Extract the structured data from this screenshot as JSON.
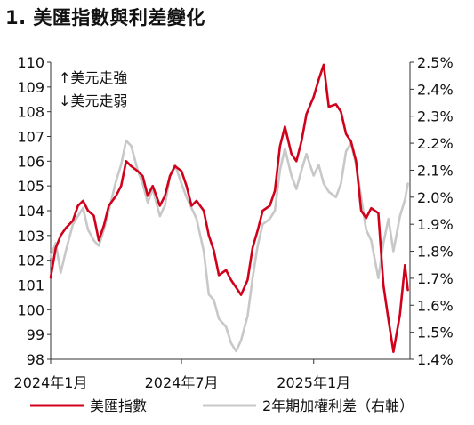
{
  "chart_data": {
    "type": "line",
    "title": "1. 美匯指數與利差變化",
    "annotations": [
      "↑美元走強",
      "↓美元走弱"
    ],
    "left_axis": {
      "ylim": [
        98,
        110
      ],
      "ticks": [
        98,
        99,
        100,
        101,
        102,
        103,
        104,
        105,
        106,
        107,
        108,
        109,
        110
      ]
    },
    "right_axis": {
      "ylim": [
        1.4,
        2.5
      ],
      "ticks": [
        "1.4%",
        "1.5%",
        "1.6%",
        "1.7%",
        "1.8%",
        "1.9%",
        "2.0%",
        "2.1%",
        "2.2%",
        "2.3%",
        "2.4%",
        "2.5%"
      ]
    },
    "x_ticks": [
      {
        "date": "2024-01-01",
        "label": "2024年1月"
      },
      {
        "date": "2024-07-01",
        "label": "2024年7月"
      },
      {
        "date": "2025-01-01",
        "label": "2025年1月"
      }
    ],
    "xlim": [
      "2024-01-01",
      "2025-05-15"
    ],
    "series": [
      {
        "name": "美匯指數",
        "axis": "left",
        "color": "#d0021b",
        "points": [
          [
            "2024-01-01",
            101.3
          ],
          [
            "2024-01-08",
            102.5
          ],
          [
            "2024-01-15",
            103.0
          ],
          [
            "2024-01-22",
            103.3
          ],
          [
            "2024-02-01",
            103.6
          ],
          [
            "2024-02-08",
            104.2
          ],
          [
            "2024-02-15",
            104.4
          ],
          [
            "2024-02-22",
            104.0
          ],
          [
            "2024-03-01",
            103.8
          ],
          [
            "2024-03-08",
            102.8
          ],
          [
            "2024-03-15",
            103.4
          ],
          [
            "2024-03-22",
            104.2
          ],
          [
            "2024-04-01",
            104.6
          ],
          [
            "2024-04-08",
            105.0
          ],
          [
            "2024-04-15",
            106.0
          ],
          [
            "2024-04-22",
            105.8
          ],
          [
            "2024-05-01",
            105.6
          ],
          [
            "2024-05-08",
            105.4
          ],
          [
            "2024-05-15",
            104.6
          ],
          [
            "2024-05-22",
            105.0
          ],
          [
            "2024-06-01",
            104.2
          ],
          [
            "2024-06-08",
            104.6
          ],
          [
            "2024-06-15",
            105.4
          ],
          [
            "2024-06-22",
            105.8
          ],
          [
            "2024-07-01",
            105.6
          ],
          [
            "2024-07-08",
            105.0
          ],
          [
            "2024-07-15",
            104.2
          ],
          [
            "2024-07-22",
            104.4
          ],
          [
            "2024-08-01",
            104.0
          ],
          [
            "2024-08-08",
            103.0
          ],
          [
            "2024-08-15",
            102.4
          ],
          [
            "2024-08-22",
            101.4
          ],
          [
            "2024-09-01",
            101.6
          ],
          [
            "2024-09-08",
            101.2
          ],
          [
            "2024-09-15",
            100.9
          ],
          [
            "2024-09-22",
            100.6
          ],
          [
            "2024-10-01",
            101.2
          ],
          [
            "2024-10-08",
            102.5
          ],
          [
            "2024-10-15",
            103.2
          ],
          [
            "2024-10-22",
            104.0
          ],
          [
            "2024-11-01",
            104.2
          ],
          [
            "2024-11-08",
            104.8
          ],
          [
            "2024-11-15",
            106.6
          ],
          [
            "2024-11-22",
            107.4
          ],
          [
            "2024-12-01",
            106.3
          ],
          [
            "2024-12-08",
            106.0
          ],
          [
            "2024-12-15",
            106.8
          ],
          [
            "2024-12-22",
            107.9
          ],
          [
            "2025-01-01",
            108.6
          ],
          [
            "2025-01-08",
            109.3
          ],
          [
            "2025-01-15",
            109.9
          ],
          [
            "2025-01-22",
            108.2
          ],
          [
            "2025-02-01",
            108.3
          ],
          [
            "2025-02-08",
            108.0
          ],
          [
            "2025-02-15",
            107.1
          ],
          [
            "2025-02-22",
            106.8
          ],
          [
            "2025-03-01",
            106.0
          ],
          [
            "2025-03-08",
            104.0
          ],
          [
            "2025-03-15",
            103.7
          ],
          [
            "2025-03-22",
            104.1
          ],
          [
            "2025-04-01",
            103.9
          ],
          [
            "2025-04-08",
            101.0
          ],
          [
            "2025-04-15",
            99.6
          ],
          [
            "2025-04-22",
            98.3
          ],
          [
            "2025-05-01",
            99.8
          ],
          [
            "2025-05-08",
            101.8
          ],
          [
            "2025-05-12",
            100.8
          ]
        ]
      },
      {
        "name": "2年期加權利差（右軸）",
        "axis": "right",
        "color": "#c8c8c8",
        "points": [
          [
            "2024-01-01",
            1.78
          ],
          [
            "2024-01-08",
            1.83
          ],
          [
            "2024-01-15",
            1.72
          ],
          [
            "2024-01-22",
            1.8
          ],
          [
            "2024-02-01",
            1.9
          ],
          [
            "2024-02-08",
            1.93
          ],
          [
            "2024-02-15",
            1.96
          ],
          [
            "2024-02-22",
            1.88
          ],
          [
            "2024-03-01",
            1.84
          ],
          [
            "2024-03-08",
            1.82
          ],
          [
            "2024-03-15",
            1.88
          ],
          [
            "2024-03-22",
            1.95
          ],
          [
            "2024-04-01",
            2.06
          ],
          [
            "2024-04-08",
            2.12
          ],
          [
            "2024-04-15",
            2.21
          ],
          [
            "2024-04-22",
            2.19
          ],
          [
            "2024-05-01",
            2.1
          ],
          [
            "2024-05-08",
            2.05
          ],
          [
            "2024-05-15",
            1.98
          ],
          [
            "2024-05-22",
            2.03
          ],
          [
            "2024-06-01",
            1.93
          ],
          [
            "2024-06-08",
            1.97
          ],
          [
            "2024-06-15",
            2.08
          ],
          [
            "2024-06-22",
            2.12
          ],
          [
            "2024-07-01",
            2.05
          ],
          [
            "2024-07-08",
            2.0
          ],
          [
            "2024-07-15",
            1.96
          ],
          [
            "2024-07-22",
            1.92
          ],
          [
            "2024-08-01",
            1.8
          ],
          [
            "2024-08-08",
            1.64
          ],
          [
            "2024-08-15",
            1.62
          ],
          [
            "2024-08-22",
            1.55
          ],
          [
            "2024-09-01",
            1.52
          ],
          [
            "2024-09-08",
            1.46
          ],
          [
            "2024-09-15",
            1.43
          ],
          [
            "2024-09-22",
            1.47
          ],
          [
            "2024-10-01",
            1.56
          ],
          [
            "2024-10-08",
            1.7
          ],
          [
            "2024-10-15",
            1.82
          ],
          [
            "2024-10-22",
            1.9
          ],
          [
            "2024-11-01",
            1.92
          ],
          [
            "2024-11-08",
            1.95
          ],
          [
            "2024-11-15",
            2.1
          ],
          [
            "2024-11-22",
            2.18
          ],
          [
            "2024-12-01",
            2.08
          ],
          [
            "2024-12-08",
            2.03
          ],
          [
            "2024-12-15",
            2.1
          ],
          [
            "2024-12-22",
            2.16
          ],
          [
            "2025-01-01",
            2.08
          ],
          [
            "2025-01-08",
            2.12
          ],
          [
            "2025-01-15",
            2.05
          ],
          [
            "2025-01-22",
            2.02
          ],
          [
            "2025-02-01",
            2.0
          ],
          [
            "2025-02-08",
            2.05
          ],
          [
            "2025-02-15",
            2.17
          ],
          [
            "2025-02-22",
            2.2
          ],
          [
            "2025-03-01",
            2.12
          ],
          [
            "2025-03-08",
            2.0
          ],
          [
            "2025-03-15",
            1.88
          ],
          [
            "2025-03-22",
            1.84
          ],
          [
            "2025-04-01",
            1.7
          ],
          [
            "2025-04-08",
            1.83
          ],
          [
            "2025-04-15",
            1.92
          ],
          [
            "2025-04-22",
            1.8
          ],
          [
            "2025-05-01",
            1.93
          ],
          [
            "2025-05-08",
            1.99
          ],
          [
            "2025-05-12",
            2.05
          ]
        ]
      }
    ],
    "legend": [
      {
        "label": "美匯指數",
        "color": "#d0021b"
      },
      {
        "label": "2年期加權利差（右軸）",
        "color": "#c8c8c8"
      }
    ]
  }
}
